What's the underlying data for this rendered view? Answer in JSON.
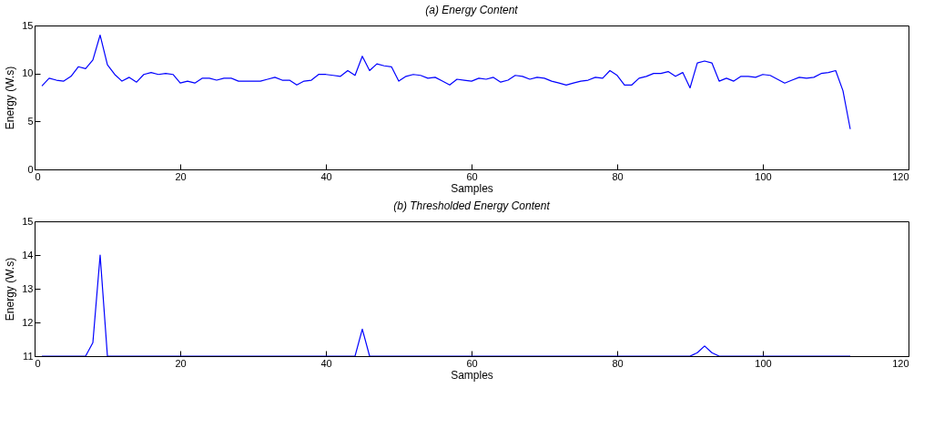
{
  "chart_data": [
    {
      "type": "line",
      "title": "(a)  Energy Content",
      "xlabel": "Samples",
      "ylabel": "Energy (W.s)",
      "x": [
        1,
        2,
        3,
        4,
        5,
        6,
        7,
        8,
        9,
        10,
        11,
        12,
        13,
        14,
        15,
        16,
        17,
        18,
        19,
        20,
        21,
        22,
        23,
        24,
        25,
        26,
        27,
        28,
        29,
        30,
        31,
        32,
        33,
        34,
        35,
        36,
        37,
        38,
        39,
        40,
        41,
        42,
        43,
        44,
        45,
        46,
        47,
        48,
        49,
        50,
        51,
        52,
        53,
        54,
        55,
        56,
        57,
        58,
        59,
        60,
        61,
        62,
        63,
        64,
        65,
        66,
        67,
        68,
        69,
        70,
        71,
        72,
        73,
        74,
        75,
        76,
        77,
        78,
        79,
        80,
        81,
        82,
        83,
        84,
        85,
        86,
        87,
        88,
        89,
        90,
        91,
        92,
        93,
        94,
        95,
        96,
        97,
        98,
        99,
        100,
        101,
        102,
        103,
        104,
        105,
        106,
        107,
        108,
        109,
        110,
        111,
        112
      ],
      "series": [
        {
          "color": "#0000ff",
          "values": [
            8.7,
            9.5,
            9.3,
            9.2,
            9.7,
            10.7,
            10.5,
            11.4,
            14.0,
            10.9,
            9.9,
            9.2,
            9.6,
            9.1,
            9.9,
            10.1,
            9.9,
            10.0,
            9.9,
            9.0,
            9.2,
            9.0,
            9.5,
            9.5,
            9.3,
            9.5,
            9.5,
            9.2,
            9.2,
            9.2,
            9.2,
            9.4,
            9.6,
            9.3,
            9.3,
            8.8,
            9.2,
            9.3,
            9.9,
            9.9,
            9.8,
            9.7,
            10.3,
            9.8,
            11.8,
            10.3,
            11.0,
            10.8,
            10.7,
            9.2,
            9.7,
            9.9,
            9.8,
            9.5,
            9.6,
            9.2,
            8.8,
            9.4,
            9.3,
            9.2,
            9.5,
            9.4,
            9.6,
            9.1,
            9.3,
            9.8,
            9.7,
            9.4,
            9.6,
            9.5,
            9.2,
            9.0,
            8.8,
            9.0,
            9.2,
            9.3,
            9.6,
            9.5,
            10.3,
            9.8,
            8.8,
            8.8,
            9.5,
            9.7,
            10.0,
            10.0,
            10.2,
            9.7,
            10.1,
            8.5,
            11.1,
            11.3,
            11.1,
            9.2,
            9.5,
            9.2,
            9.7,
            9.7,
            9.6,
            9.9,
            9.8,
            9.4,
            9.0,
            9.3,
            9.6,
            9.5,
            9.6,
            10.0,
            10.1,
            10.3,
            8.2,
            4.2
          ]
        }
      ],
      "xlim": [
        0,
        120
      ],
      "xticks": [
        0,
        20,
        40,
        60,
        80,
        100,
        120
      ],
      "ylim": [
        0,
        15
      ],
      "yticks": [
        0,
        5,
        10,
        15
      ],
      "grid": false,
      "line_style": "solid"
    },
    {
      "type": "line",
      "title": "(b)  Thresholded Energy Content",
      "xlabel": "Samples",
      "ylabel": "Energy (W.s)",
      "x": [
        1,
        2,
        3,
        4,
        5,
        6,
        7,
        8,
        9,
        10,
        11,
        12,
        13,
        14,
        15,
        16,
        17,
        18,
        19,
        20,
        21,
        22,
        23,
        24,
        25,
        26,
        27,
        28,
        29,
        30,
        31,
        32,
        33,
        34,
        35,
        36,
        37,
        38,
        39,
        40,
        41,
        42,
        43,
        44,
        45,
        46,
        47,
        48,
        49,
        50,
        51,
        52,
        53,
        54,
        55,
        56,
        57,
        58,
        59,
        60,
        61,
        62,
        63,
        64,
        65,
        66,
        67,
        68,
        69,
        70,
        71,
        72,
        73,
        74,
        75,
        76,
        77,
        78,
        79,
        80,
        81,
        82,
        83,
        84,
        85,
        86,
        87,
        88,
        89,
        90,
        91,
        92,
        93,
        94,
        95,
        96,
        97,
        98,
        99,
        100,
        101,
        102,
        103,
        104,
        105,
        106,
        107,
        108,
        109,
        110,
        111,
        112
      ],
      "series": [
        {
          "color": "#0000ff",
          "values": [
            11,
            11,
            11,
            11,
            11,
            11,
            11,
            11.4,
            14.0,
            11,
            11,
            11,
            11,
            11,
            11,
            11,
            11,
            11,
            11,
            11,
            11,
            11,
            11,
            11,
            11,
            11,
            11,
            11,
            11,
            11,
            11,
            11,
            11,
            11,
            11,
            11,
            11,
            11,
            11,
            11,
            11,
            11,
            11,
            11,
            11.8,
            11,
            11,
            11,
            11,
            11,
            11,
            11,
            11,
            11,
            11,
            11,
            11,
            11,
            11,
            11,
            11,
            11,
            11,
            11,
            11,
            11,
            11,
            11,
            11,
            11,
            11,
            11,
            11,
            11,
            11,
            11,
            11,
            11,
            11,
            11,
            11,
            11,
            11,
            11,
            11,
            11,
            11,
            11,
            11,
            11,
            11.1,
            11.3,
            11.1,
            11,
            11,
            11,
            11,
            11,
            11,
            11,
            11,
            11,
            11,
            11,
            11,
            11,
            11,
            11,
            11,
            11,
            11,
            11
          ]
        }
      ],
      "xlim": [
        0,
        120
      ],
      "xticks": [
        0,
        20,
        40,
        60,
        80,
        100,
        120
      ],
      "ylim": [
        11,
        15
      ],
      "yticks": [
        11,
        12,
        13,
        14,
        15
      ],
      "grid": false,
      "line_style": "solid"
    }
  ]
}
